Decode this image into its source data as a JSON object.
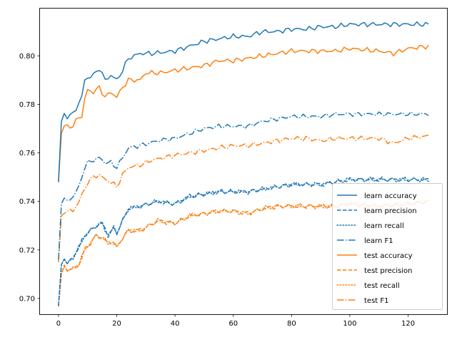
{
  "chart_data": {
    "type": "line",
    "title": "",
    "xlabel": "",
    "ylabel": "",
    "xlim": [
      -6.35,
      133.35
    ],
    "ylim": [
      0.6935,
      0.8195
    ],
    "x_ticks": [
      0,
      20,
      40,
      60,
      80,
      100,
      120
    ],
    "y_ticks": [
      0.7,
      0.72,
      0.74,
      0.76,
      0.78,
      0.8
    ],
    "x_tick_labels": [
      "0",
      "20",
      "40",
      "60",
      "80",
      "100",
      "120"
    ],
    "y_tick_labels": [
      "0.70",
      "0.72",
      "0.74",
      "0.76",
      "0.78",
      "0.80"
    ],
    "grid": false,
    "legend_position": "lower-right",
    "x": [
      0,
      1,
      2,
      3,
      4,
      5,
      6,
      7,
      8,
      9,
      10,
      11,
      12,
      13,
      14,
      15,
      16,
      17,
      18,
      19,
      20,
      21,
      22,
      23,
      24,
      25,
      26,
      27,
      28,
      29,
      30,
      31,
      32,
      33,
      34,
      35,
      36,
      37,
      38,
      39,
      40,
      41,
      42,
      43,
      44,
      45,
      46,
      47,
      48,
      49,
      50,
      51,
      52,
      53,
      54,
      55,
      56,
      57,
      58,
      59,
      60,
      61,
      62,
      63,
      64,
      65,
      66,
      67,
      68,
      69,
      70,
      71,
      72,
      73,
      74,
      75,
      76,
      77,
      78,
      79,
      80,
      81,
      82,
      83,
      84,
      85,
      86,
      87,
      88,
      89,
      90,
      91,
      92,
      93,
      94,
      95,
      96,
      97,
      98,
      99,
      100,
      101,
      102,
      103,
      104,
      105,
      106,
      107,
      108,
      109,
      110,
      111,
      112,
      113,
      114,
      115,
      116,
      117,
      118,
      119,
      120,
      121,
      122,
      123,
      124,
      125,
      126,
      127
    ],
    "series": [
      {
        "name": "learn accuracy",
        "color": "#1f77b4",
        "dash": "solid",
        "anchors": [
          [
            0,
            0.748
          ],
          [
            1,
            0.773
          ],
          [
            2,
            0.776
          ],
          [
            3,
            0.775
          ],
          [
            5,
            0.776
          ],
          [
            8,
            0.783
          ],
          [
            9,
            0.79
          ],
          [
            10,
            0.791
          ],
          [
            12,
            0.792
          ],
          [
            14,
            0.795
          ],
          [
            16,
            0.79
          ],
          [
            18,
            0.792
          ],
          [
            20,
            0.79
          ],
          [
            22,
            0.794
          ],
          [
            24,
            0.799
          ],
          [
            28,
            0.801
          ],
          [
            32,
            0.801
          ],
          [
            40,
            0.802
          ],
          [
            45,
            0.804
          ],
          [
            50,
            0.806
          ],
          [
            55,
            0.807
          ],
          [
            60,
            0.808
          ],
          [
            65,
            0.808
          ],
          [
            70,
            0.81
          ],
          [
            75,
            0.81
          ],
          [
            80,
            0.811
          ],
          [
            85,
            0.811
          ],
          [
            90,
            0.812
          ],
          [
            95,
            0.812
          ],
          [
            100,
            0.813
          ],
          [
            110,
            0.813
          ],
          [
            120,
            0.813
          ],
          [
            127,
            0.813
          ]
        ],
        "amplitude": 0.0011
      },
      {
        "name": "learn precision",
        "color": "#1f77b4",
        "dash": "dashed",
        "anchors": [
          [
            0,
            0.697
          ],
          [
            1,
            0.714
          ],
          [
            2,
            0.717
          ],
          [
            3,
            0.714
          ],
          [
            5,
            0.717
          ],
          [
            7,
            0.721
          ],
          [
            9,
            0.726
          ],
          [
            11,
            0.728
          ],
          [
            13,
            0.73
          ],
          [
            15,
            0.731
          ],
          [
            17,
            0.726
          ],
          [
            19,
            0.729
          ],
          [
            20,
            0.727
          ],
          [
            22,
            0.732
          ],
          [
            24,
            0.737
          ],
          [
            28,
            0.738
          ],
          [
            34,
            0.74
          ],
          [
            40,
            0.739
          ],
          [
            45,
            0.742
          ],
          [
            50,
            0.743
          ],
          [
            55,
            0.744
          ],
          [
            60,
            0.744
          ],
          [
            65,
            0.744
          ],
          [
            70,
            0.745
          ],
          [
            75,
            0.746
          ],
          [
            80,
            0.747
          ],
          [
            85,
            0.747
          ],
          [
            90,
            0.747
          ],
          [
            95,
            0.748
          ],
          [
            100,
            0.749
          ],
          [
            110,
            0.749
          ],
          [
            120,
            0.749
          ],
          [
            127,
            0.749
          ]
        ],
        "amplitude": 0.0011
      },
      {
        "name": "learn recall",
        "color": "#1f77b4",
        "dash": "dotted",
        "anchors": [
          [
            0,
            0.697
          ],
          [
            1,
            0.714
          ],
          [
            2,
            0.717
          ],
          [
            3,
            0.714
          ],
          [
            5,
            0.717
          ],
          [
            7,
            0.721
          ],
          [
            9,
            0.726
          ],
          [
            11,
            0.728
          ],
          [
            13,
            0.73
          ],
          [
            15,
            0.731
          ],
          [
            17,
            0.726
          ],
          [
            19,
            0.729
          ],
          [
            20,
            0.727
          ],
          [
            22,
            0.732
          ],
          [
            24,
            0.737
          ],
          [
            28,
            0.738
          ],
          [
            34,
            0.74
          ],
          [
            40,
            0.739
          ],
          [
            45,
            0.742
          ],
          [
            50,
            0.743
          ],
          [
            55,
            0.744
          ],
          [
            60,
            0.744
          ],
          [
            65,
            0.744
          ],
          [
            70,
            0.745
          ],
          [
            75,
            0.746
          ],
          [
            80,
            0.747
          ],
          [
            85,
            0.747
          ],
          [
            90,
            0.747
          ],
          [
            95,
            0.748
          ],
          [
            100,
            0.749
          ],
          [
            110,
            0.749
          ],
          [
            120,
            0.749
          ],
          [
            127,
            0.749
          ]
        ],
        "amplitude": 0.0011
      },
      {
        "name": "learn F1",
        "color": "#1f77b4",
        "dash": "dashdot",
        "anchors": [
          [
            0,
            0.716
          ],
          [
            1,
            0.739
          ],
          [
            2,
            0.741
          ],
          [
            3,
            0.74
          ],
          [
            5,
            0.742
          ],
          [
            7,
            0.746
          ],
          [
            9,
            0.754
          ],
          [
            10,
            0.756
          ],
          [
            12,
            0.757
          ],
          [
            14,
            0.758
          ],
          [
            16,
            0.756
          ],
          [
            18,
            0.756
          ],
          [
            20,
            0.754
          ],
          [
            22,
            0.758
          ],
          [
            24,
            0.762
          ],
          [
            28,
            0.763
          ],
          [
            34,
            0.765
          ],
          [
            40,
            0.766
          ],
          [
            45,
            0.768
          ],
          [
            50,
            0.77
          ],
          [
            55,
            0.771
          ],
          [
            60,
            0.771
          ],
          [
            65,
            0.771
          ],
          [
            70,
            0.773
          ],
          [
            75,
            0.774
          ],
          [
            80,
            0.775
          ],
          [
            85,
            0.775
          ],
          [
            90,
            0.775
          ],
          [
            95,
            0.776
          ],
          [
            100,
            0.776
          ],
          [
            110,
            0.776
          ],
          [
            120,
            0.776
          ],
          [
            127,
            0.776
          ]
        ],
        "amplitude": 0.001
      },
      {
        "name": "test accuracy",
        "color": "#ff7f0e",
        "dash": "solid",
        "anchors": [
          [
            0,
            0.748
          ],
          [
            1,
            0.768
          ],
          [
            2,
            0.771
          ],
          [
            3,
            0.771
          ],
          [
            5,
            0.771
          ],
          [
            7,
            0.775
          ],
          [
            8,
            0.775
          ],
          [
            9,
            0.782
          ],
          [
            10,
            0.786
          ],
          [
            12,
            0.785
          ],
          [
            14,
            0.787
          ],
          [
            16,
            0.783
          ],
          [
            18,
            0.785
          ],
          [
            20,
            0.783
          ],
          [
            22,
            0.787
          ],
          [
            24,
            0.79
          ],
          [
            28,
            0.79
          ],
          [
            30,
            0.793
          ],
          [
            35,
            0.793
          ],
          [
            40,
            0.794
          ],
          [
            45,
            0.795
          ],
          [
            50,
            0.796
          ],
          [
            55,
            0.798
          ],
          [
            60,
            0.798
          ],
          [
            65,
            0.799
          ],
          [
            70,
            0.8
          ],
          [
            75,
            0.801
          ],
          [
            80,
            0.802
          ],
          [
            85,
            0.802
          ],
          [
            90,
            0.802
          ],
          [
            95,
            0.802
          ],
          [
            100,
            0.803
          ],
          [
            110,
            0.802
          ],
          [
            115,
            0.801
          ],
          [
            120,
            0.803
          ],
          [
            127,
            0.804
          ]
        ],
        "amplitude": 0.0011
      },
      {
        "name": "test precision",
        "color": "#ff7f0e",
        "dash": "dashed",
        "anchors": [
          [
            0,
            0.697
          ],
          [
            1,
            0.71
          ],
          [
            2,
            0.713
          ],
          [
            3,
            0.712
          ],
          [
            5,
            0.712
          ],
          [
            7,
            0.714
          ],
          [
            9,
            0.72
          ],
          [
            11,
            0.723
          ],
          [
            13,
            0.726
          ],
          [
            15,
            0.725
          ],
          [
            17,
            0.723
          ],
          [
            19,
            0.723
          ],
          [
            20,
            0.721
          ],
          [
            22,
            0.725
          ],
          [
            24,
            0.728
          ],
          [
            28,
            0.728
          ],
          [
            34,
            0.732
          ],
          [
            40,
            0.731
          ],
          [
            45,
            0.734
          ],
          [
            50,
            0.735
          ],
          [
            55,
            0.736
          ],
          [
            60,
            0.736
          ],
          [
            65,
            0.735
          ],
          [
            70,
            0.737
          ],
          [
            75,
            0.738
          ],
          [
            80,
            0.738
          ],
          [
            85,
            0.738
          ],
          [
            90,
            0.738
          ],
          [
            95,
            0.738
          ],
          [
            100,
            0.739
          ],
          [
            110,
            0.738
          ],
          [
            120,
            0.739
          ],
          [
            127,
            0.74
          ]
        ],
        "amplitude": 0.0011
      },
      {
        "name": "test recall",
        "color": "#ff7f0e",
        "dash": "dotted",
        "anchors": [
          [
            0,
            0.697
          ],
          [
            1,
            0.71
          ],
          [
            2,
            0.713
          ],
          [
            3,
            0.712
          ],
          [
            5,
            0.712
          ],
          [
            7,
            0.714
          ],
          [
            9,
            0.72
          ],
          [
            11,
            0.723
          ],
          [
            13,
            0.726
          ],
          [
            15,
            0.725
          ],
          [
            17,
            0.723
          ],
          [
            19,
            0.723
          ],
          [
            20,
            0.721
          ],
          [
            22,
            0.725
          ],
          [
            24,
            0.728
          ],
          [
            28,
            0.728
          ],
          [
            34,
            0.732
          ],
          [
            40,
            0.731
          ],
          [
            45,
            0.734
          ],
          [
            50,
            0.735
          ],
          [
            55,
            0.736
          ],
          [
            60,
            0.736
          ],
          [
            65,
            0.735
          ],
          [
            70,
            0.737
          ],
          [
            75,
            0.738
          ],
          [
            80,
            0.738
          ],
          [
            85,
            0.738
          ],
          [
            90,
            0.738
          ],
          [
            95,
            0.738
          ],
          [
            100,
            0.739
          ],
          [
            110,
            0.738
          ],
          [
            120,
            0.739
          ],
          [
            127,
            0.74
          ]
        ],
        "amplitude": 0.0011
      },
      {
        "name": "test F1",
        "color": "#ff7f0e",
        "dash": "dashdot",
        "anchors": [
          [
            0,
            0.715
          ],
          [
            1,
            0.734
          ],
          [
            2,
            0.736
          ],
          [
            3,
            0.736
          ],
          [
            5,
            0.736
          ],
          [
            7,
            0.74
          ],
          [
            9,
            0.745
          ],
          [
            10,
            0.748
          ],
          [
            12,
            0.75
          ],
          [
            14,
            0.751
          ],
          [
            16,
            0.749
          ],
          [
            18,
            0.748
          ],
          [
            20,
            0.746
          ],
          [
            22,
            0.751
          ],
          [
            24,
            0.754
          ],
          [
            28,
            0.755
          ],
          [
            32,
            0.757
          ],
          [
            36,
            0.758
          ],
          [
            40,
            0.759
          ],
          [
            45,
            0.76
          ],
          [
            50,
            0.761
          ],
          [
            55,
            0.762
          ],
          [
            60,
            0.763
          ],
          [
            65,
            0.763
          ],
          [
            70,
            0.764
          ],
          [
            75,
            0.765
          ],
          [
            80,
            0.766
          ],
          [
            85,
            0.766
          ],
          [
            90,
            0.765
          ],
          [
            95,
            0.766
          ],
          [
            100,
            0.766
          ],
          [
            110,
            0.766
          ],
          [
            115,
            0.764
          ],
          [
            120,
            0.766
          ],
          [
            127,
            0.767
          ]
        ],
        "amplitude": 0.0011
      }
    ]
  }
}
